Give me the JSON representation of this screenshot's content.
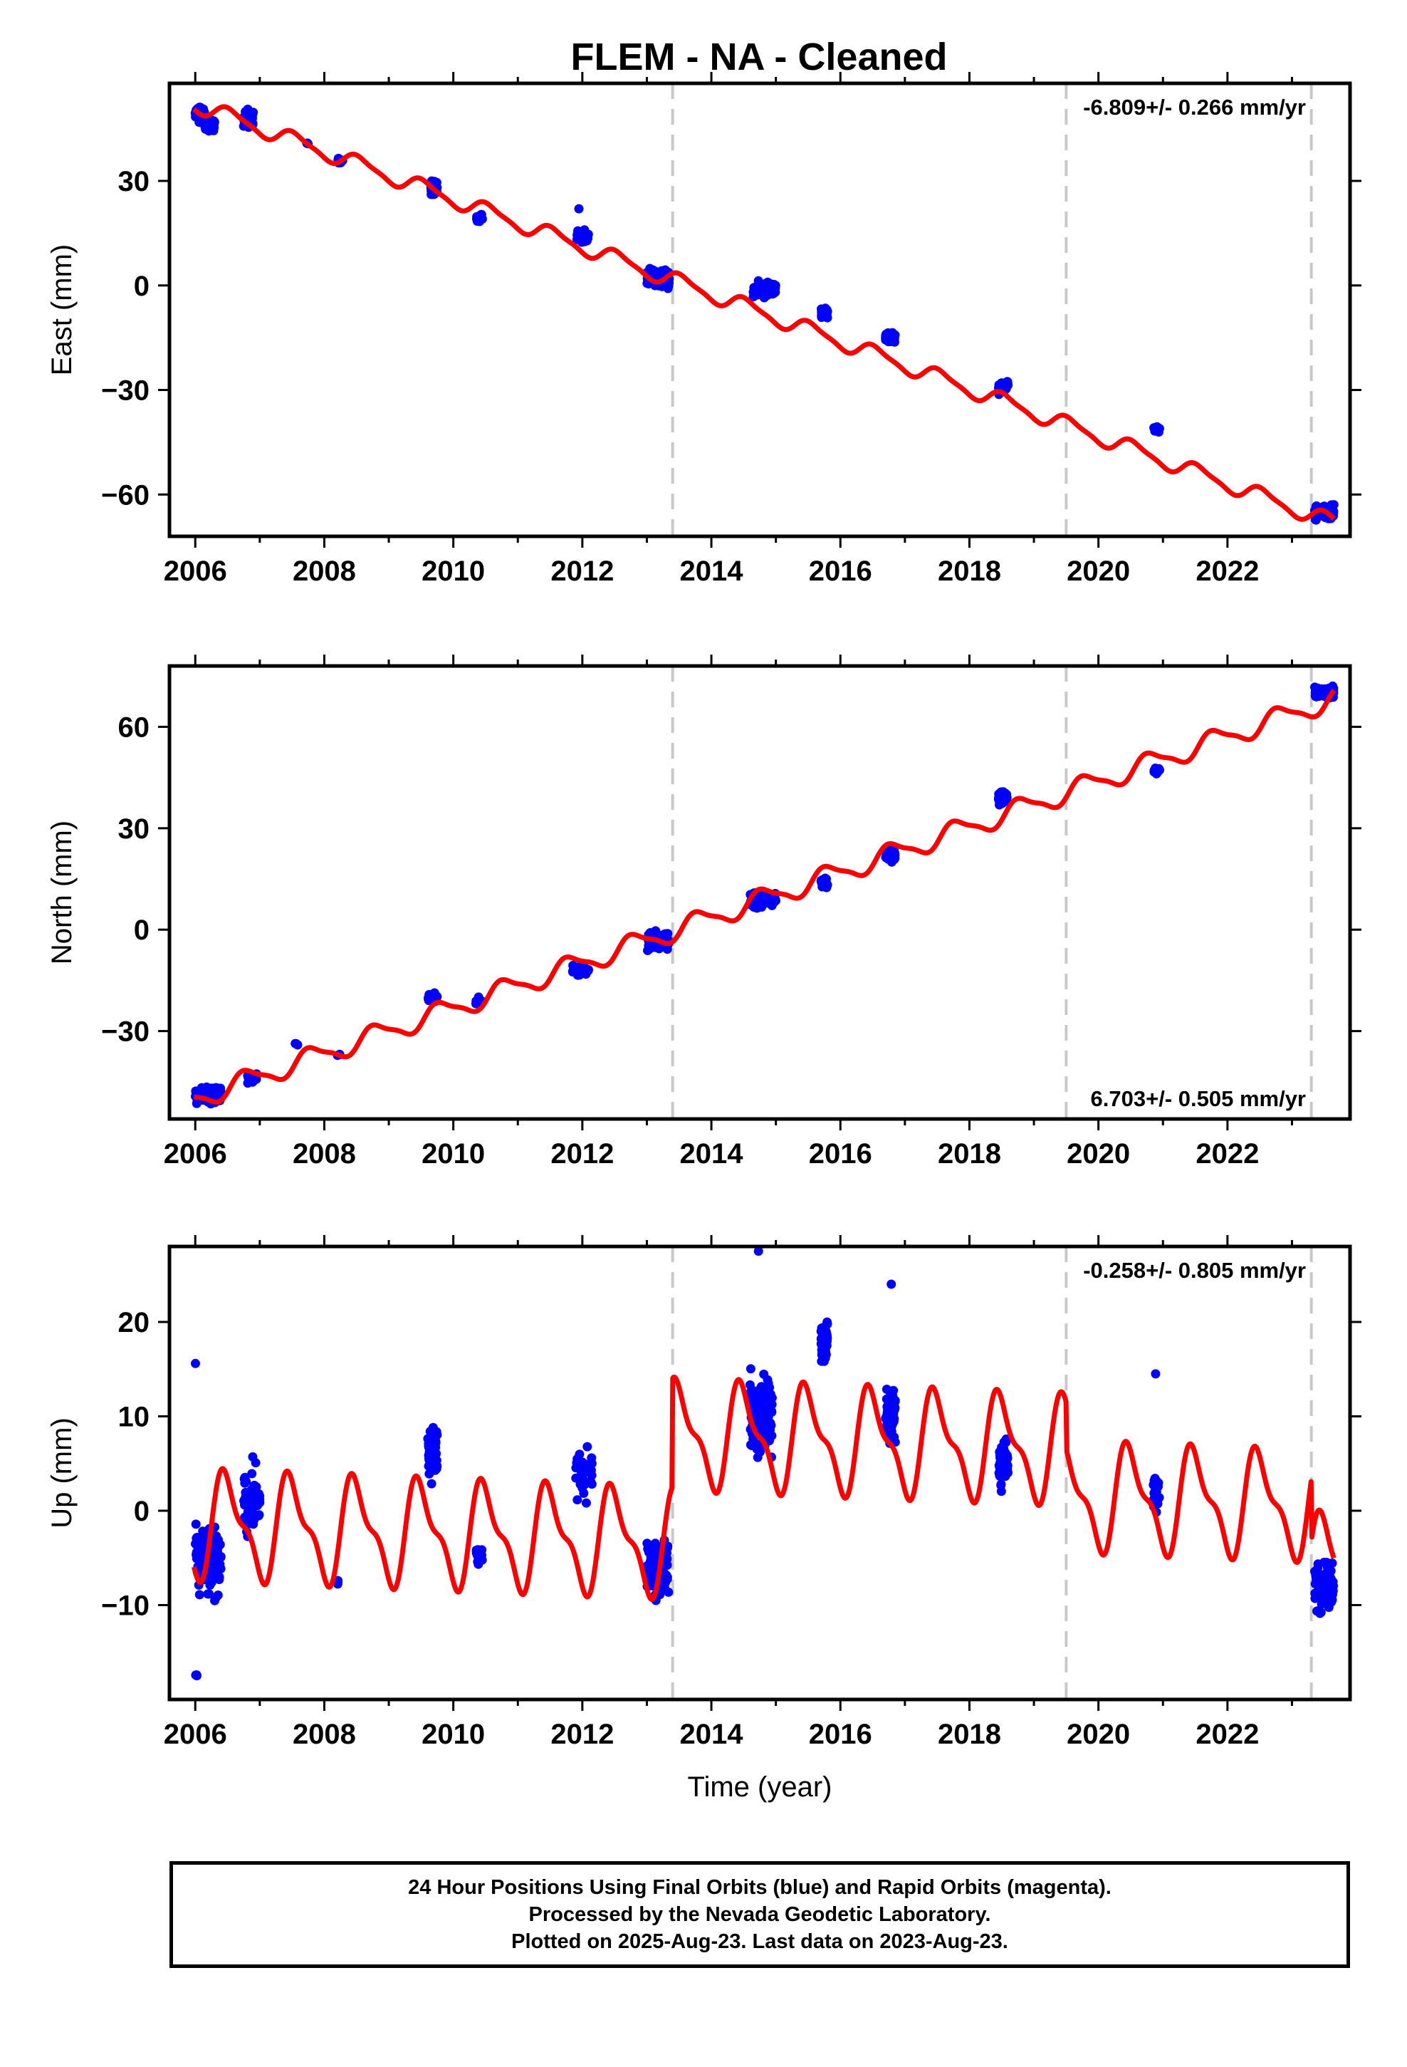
{
  "title": "FLEM  - NA - Cleaned",
  "colors": {
    "data": "#0000ff",
    "model": "#ff0000",
    "breaks": "#c8c8c8",
    "frame": "#000000"
  },
  "chart_data": [
    {
      "type": "scatter",
      "component": "east",
      "ylabel": "East (mm)",
      "xlabel": "",
      "xlim": [
        2005.6,
        2023.9
      ],
      "ylim": [
        -72,
        58
      ],
      "xticks": [
        2006,
        2008,
        2010,
        2012,
        2014,
        2016,
        2018,
        2020,
        2022
      ],
      "yticks": [
        -60,
        -30,
        0,
        30
      ],
      "rate_label": "-6.809+/- 0.266 mm/yr",
      "rate_position": "top-right",
      "breaks": [
        2013.4,
        2019.5,
        2023.3
      ],
      "model": {
        "start": 2005.98,
        "end": 2023.65,
        "ref_epoch": 2006.0,
        "ref_value": 52,
        "rate": -6.809,
        "annual_amp": 2.2,
        "annual_phase": 0.3,
        "semiannual_amp": 0.6,
        "offsets": []
      },
      "clusters": [
        {
          "t0": 2006.0,
          "t1": 2006.15,
          "y": 49,
          "spread": 6,
          "n": 90
        },
        {
          "t0": 2006.15,
          "t1": 2006.3,
          "y": 46,
          "spread": 5,
          "n": 40
        },
        {
          "t0": 2006.75,
          "t1": 2006.9,
          "y": 48,
          "spread": 5,
          "n": 50
        },
        {
          "t0": 2007.7,
          "t1": 2007.75,
          "y": 41,
          "spread": 1,
          "n": 3
        },
        {
          "t0": 2008.2,
          "t1": 2008.3,
          "y": 36,
          "spread": 2,
          "n": 10
        },
        {
          "t0": 2009.65,
          "t1": 2009.75,
          "y": 28,
          "spread": 5,
          "n": 35
        },
        {
          "t0": 2010.35,
          "t1": 2010.45,
          "y": 19,
          "spread": 3,
          "n": 15
        },
        {
          "t0": 2011.9,
          "t1": 2012.1,
          "y": 14,
          "spread": 4,
          "n": 35
        },
        {
          "t0": 2011.9,
          "t1": 2011.95,
          "y": 22,
          "spread": 0,
          "n": 1
        },
        {
          "t0": 2013.0,
          "t1": 2013.35,
          "y": 2,
          "spread": 6,
          "n": 80
        },
        {
          "t0": 2014.65,
          "t1": 2015.0,
          "y": -1,
          "spread": 5,
          "n": 100
        },
        {
          "t0": 2015.7,
          "t1": 2015.8,
          "y": -8,
          "spread": 3,
          "n": 40
        },
        {
          "t0": 2016.7,
          "t1": 2016.85,
          "y": -15,
          "spread": 3,
          "n": 70
        },
        {
          "t0": 2018.45,
          "t1": 2018.6,
          "y": -29,
          "spread": 4,
          "n": 40
        },
        {
          "t0": 2020.85,
          "t1": 2020.95,
          "y": -41,
          "spread": 2,
          "n": 20
        },
        {
          "t0": 2023.35,
          "t1": 2023.65,
          "y": -65,
          "spread": 4,
          "n": 80
        }
      ]
    },
    {
      "type": "scatter",
      "component": "north",
      "ylabel": "North (mm)",
      "xlabel": "",
      "xlim": [
        2005.6,
        2023.9
      ],
      "ylim": [
        -56,
        78
      ],
      "xticks": [
        2006,
        2008,
        2010,
        2012,
        2014,
        2016,
        2018,
        2020,
        2022
      ],
      "yticks": [
        -30,
        0,
        30,
        60
      ],
      "rate_label": "6.703+/- 0.505 mm/yr",
      "rate_position": "bottom-right",
      "breaks": [
        2013.4,
        2019.5,
        2023.3
      ],
      "model": {
        "start": 2005.98,
        "end": 2023.65,
        "ref_epoch": 2006.0,
        "ref_value": -50,
        "rate": 6.703,
        "annual_amp": 3.0,
        "annual_phase": 0.55,
        "semiannual_amp": 0.8,
        "offsets": []
      },
      "clusters": [
        {
          "t0": 2006.0,
          "t1": 2006.4,
          "y": -49,
          "spread": 5,
          "n": 120
        },
        {
          "t0": 2006.8,
          "t1": 2006.95,
          "y": -44,
          "spread": 3,
          "n": 40
        },
        {
          "t0": 2007.55,
          "t1": 2007.6,
          "y": -34,
          "spread": 1,
          "n": 3
        },
        {
          "t0": 2008.2,
          "t1": 2008.25,
          "y": -37,
          "spread": 1,
          "n": 3
        },
        {
          "t0": 2009.6,
          "t1": 2009.75,
          "y": -20,
          "spread": 3,
          "n": 40
        },
        {
          "t0": 2010.35,
          "t1": 2010.45,
          "y": -21,
          "spread": 3,
          "n": 10
        },
        {
          "t0": 2011.85,
          "t1": 2012.1,
          "y": -12,
          "spread": 3,
          "n": 30
        },
        {
          "t0": 2013.0,
          "t1": 2013.35,
          "y": -3,
          "spread": 6,
          "n": 80
        },
        {
          "t0": 2014.6,
          "t1": 2015.0,
          "y": 9,
          "spread": 5,
          "n": 90
        },
        {
          "t0": 2015.7,
          "t1": 2015.8,
          "y": 14,
          "spread": 3,
          "n": 35
        },
        {
          "t0": 2016.7,
          "t1": 2016.85,
          "y": 22,
          "spread": 4,
          "n": 60
        },
        {
          "t0": 2018.45,
          "t1": 2018.6,
          "y": 39,
          "spread": 4,
          "n": 40
        },
        {
          "t0": 2020.85,
          "t1": 2020.95,
          "y": 47,
          "spread": 2,
          "n": 20
        },
        {
          "t0": 2023.35,
          "t1": 2023.65,
          "y": 70,
          "spread": 4,
          "n": 80
        }
      ]
    },
    {
      "type": "scatter",
      "component": "up",
      "ylabel": "Up (mm)",
      "xlabel": "Time (year)",
      "xlim": [
        2005.6,
        2023.9
      ],
      "ylim": [
        -20,
        28
      ],
      "xticks": [
        2006,
        2008,
        2010,
        2012,
        2014,
        2016,
        2018,
        2020,
        2022
      ],
      "yticks": [
        -10,
        0,
        10,
        20
      ],
      "rate_label": "-0.258+/- 0.805 mm/yr",
      "rate_position": "top-right",
      "breaks": [
        2013.4,
        2019.5,
        2023.3
      ],
      "model": {
        "start": 2005.98,
        "end": 2023.65,
        "ref_epoch": 2006.0,
        "ref_value": -1.5,
        "rate": -0.258,
        "annual_amp": 5.0,
        "annual_phase": 0.25,
        "semiannual_amp": 2.0,
        "offsets": [
          {
            "t": 2013.4,
            "dy": 11.5
          },
          {
            "t": 2019.5,
            "dy": -5.0
          },
          {
            "t": 2023.3,
            "dy": -6.5
          }
        ]
      },
      "clusters": [
        {
          "t0": 2006.0,
          "t1": 2006.4,
          "y": -5,
          "spread": 8,
          "n": 150
        },
        {
          "t0": 2006.0,
          "t1": 2006.05,
          "y": 15.6,
          "spread": 0,
          "n": 1
        },
        {
          "t0": 2006.0,
          "t1": 2006.05,
          "y": -17.5,
          "spread": 1.5,
          "n": 3
        },
        {
          "t0": 2006.75,
          "t1": 2007.0,
          "y": 1,
          "spread": 8,
          "n": 60
        },
        {
          "t0": 2008.2,
          "t1": 2008.25,
          "y": -7.5,
          "spread": 2,
          "n": 3
        },
        {
          "t0": 2009.6,
          "t1": 2009.75,
          "y": 6,
          "spread": 6,
          "n": 50
        },
        {
          "t0": 2010.35,
          "t1": 2010.45,
          "y": -5,
          "spread": 2,
          "n": 12
        },
        {
          "t0": 2011.9,
          "t1": 2012.15,
          "y": 4,
          "spread": 7,
          "n": 30
        },
        {
          "t0": 2013.0,
          "t1": 2013.35,
          "y": -6,
          "spread": 7,
          "n": 100
        },
        {
          "t0": 2014.6,
          "t1": 2014.95,
          "y": 10,
          "spread": 9,
          "n": 110
        },
        {
          "t0": 2014.7,
          "t1": 2014.75,
          "y": 27.5,
          "spread": 0,
          "n": 1
        },
        {
          "t0": 2015.7,
          "t1": 2015.8,
          "y": 18,
          "spread": 5,
          "n": 50
        },
        {
          "t0": 2016.7,
          "t1": 2016.85,
          "y": 10,
          "spread": 6,
          "n": 80
        },
        {
          "t0": 2016.75,
          "t1": 2016.8,
          "y": 24,
          "spread": 0,
          "n": 1
        },
        {
          "t0": 2018.45,
          "t1": 2018.6,
          "y": 5,
          "spread": 7,
          "n": 50
        },
        {
          "t0": 2020.85,
          "t1": 2020.95,
          "y": 2,
          "spread": 5,
          "n": 20
        },
        {
          "t0": 2020.88,
          "t1": 2020.92,
          "y": 14.5,
          "spread": 0,
          "n": 1
        },
        {
          "t0": 2023.35,
          "t1": 2023.65,
          "y": -8,
          "spread": 6,
          "n": 90
        }
      ]
    }
  ],
  "footer": {
    "line1": "24 Hour Positions Using Final Orbits (blue) and Rapid Orbits (magenta).",
    "line2": "Processed by the Nevada Geodetic Laboratory.",
    "line3": "Plotted on 2025-Aug-23. Last data on 2023-Aug-23."
  }
}
